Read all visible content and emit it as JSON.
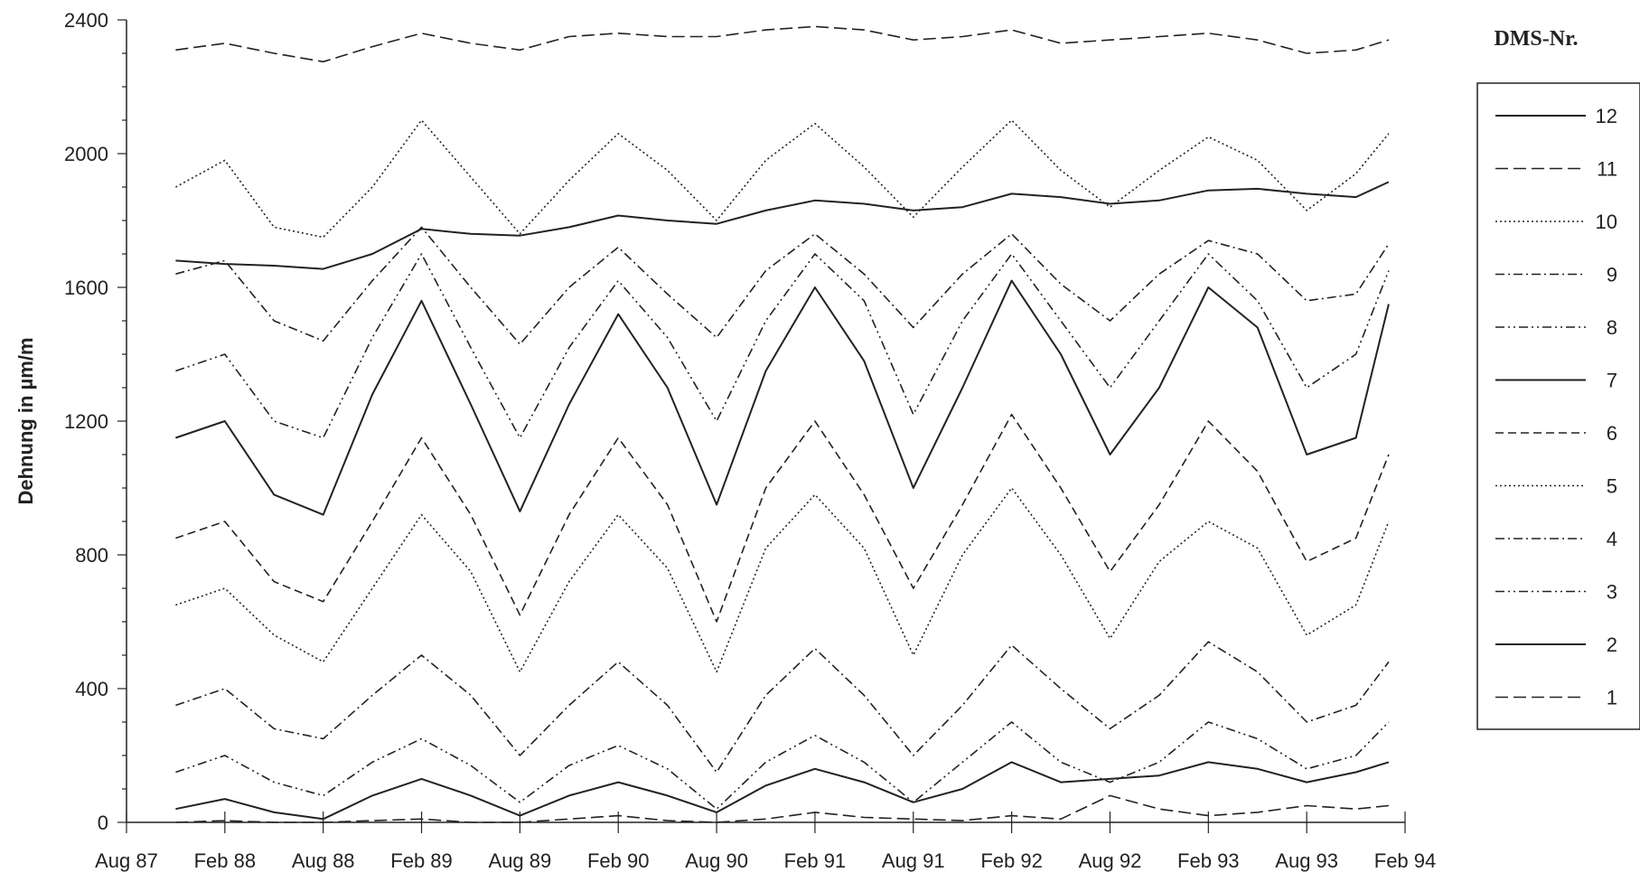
{
  "chart_data": {
    "type": "line",
    "ylabel": "Dehnung in µm/m",
    "xlabel": "",
    "ylim": [
      0,
      2400
    ],
    "yticks": [
      0,
      400,
      800,
      1200,
      1600,
      2000,
      2400
    ],
    "xticks": [
      "Aug 87",
      "Feb 88",
      "Aug 88",
      "Feb 89",
      "Aug 89",
      "Feb 90",
      "Aug 90",
      "Feb 91",
      "Aug 91",
      "Feb 92",
      "Aug 92",
      "Feb 93",
      "Aug 93",
      "Feb 94"
    ],
    "xlim": [
      "1987-08",
      "1994-02"
    ],
    "legend_title": "DMS-Nr.",
    "legend_position": "right",
    "grid": false,
    "x": [
      "1987-11",
      "1988-02",
      "1988-05",
      "1988-08",
      "1988-11",
      "1989-02",
      "1989-05",
      "1989-08",
      "1989-11",
      "1990-02",
      "1990-05",
      "1990-08",
      "1990-11",
      "1991-02",
      "1991-05",
      "1991-08",
      "1991-11",
      "1992-02",
      "1992-05",
      "1992-08",
      "1992-11",
      "1993-02",
      "1993-05",
      "1993-08",
      "1993-11",
      "1994-01"
    ],
    "series": [
      {
        "name": "12",
        "dash": "solid",
        "values": [
          1680,
          1670,
          1665,
          1655,
          1700,
          1775,
          1760,
          1755,
          1780,
          1815,
          1800,
          1790,
          1830,
          1860,
          1850,
          1830,
          1840,
          1880,
          1870,
          1850,
          1860,
          1890,
          1895,
          1880,
          1870,
          1915
        ]
      },
      {
        "name": "11",
        "dash": "long-dash",
        "values": [
          2310,
          2330,
          2300,
          2275,
          2320,
          2360,
          2330,
          2310,
          2350,
          2360,
          2350,
          2350,
          2370,
          2380,
          2370,
          2340,
          2350,
          2370,
          2330,
          2340,
          2350,
          2360,
          2340,
          2300,
          2310,
          2340
        ]
      },
      {
        "name": "10",
        "dash": "fine-dot",
        "values": [
          1900,
          1980,
          1780,
          1750,
          1900,
          2100,
          1930,
          1760,
          1920,
          2060,
          1950,
          1800,
          1980,
          2090,
          1960,
          1810,
          1960,
          2100,
          1950,
          1840,
          1950,
          2050,
          1980,
          1830,
          1940,
          2060
        ]
      },
      {
        "name": "9",
        "dash": "dash-dot",
        "values": [
          1640,
          1680,
          1500,
          1440,
          1620,
          1780,
          1600,
          1430,
          1600,
          1720,
          1580,
          1450,
          1650,
          1760,
          1640,
          1480,
          1640,
          1760,
          1610,
          1500,
          1640,
          1740,
          1700,
          1560,
          1580,
          1730
        ]
      },
      {
        "name": "8",
        "dash": "dash-dot-dot",
        "values": [
          1350,
          1400,
          1200,
          1150,
          1450,
          1700,
          1420,
          1150,
          1420,
          1620,
          1450,
          1200,
          1500,
          1700,
          1560,
          1220,
          1500,
          1700,
          1500,
          1300,
          1500,
          1700,
          1560,
          1300,
          1400,
          1650
        ]
      },
      {
        "name": "7",
        "dash": "solid",
        "values": [
          1150,
          1200,
          980,
          920,
          1280,
          1560,
          1250,
          930,
          1250,
          1520,
          1300,
          950,
          1350,
          1600,
          1380,
          1000,
          1300,
          1620,
          1400,
          1100,
          1300,
          1600,
          1480,
          1100,
          1150,
          1550
        ]
      },
      {
        "name": "6",
        "dash": "medium-dash",
        "values": [
          850,
          900,
          720,
          660,
          900,
          1150,
          920,
          620,
          920,
          1150,
          950,
          600,
          1000,
          1200,
          980,
          700,
          950,
          1220,
          1000,
          750,
          950,
          1200,
          1050,
          780,
          850,
          1100
        ]
      },
      {
        "name": "5",
        "dash": "fine-dot",
        "values": [
          650,
          700,
          560,
          480,
          700,
          920,
          750,
          450,
          720,
          920,
          760,
          450,
          820,
          980,
          820,
          500,
          800,
          1000,
          800,
          550,
          780,
          900,
          820,
          560,
          650,
          900
        ]
      },
      {
        "name": "4",
        "dash": "dash-dot",
        "values": [
          350,
          400,
          280,
          250,
          380,
          500,
          380,
          200,
          350,
          480,
          350,
          150,
          380,
          520,
          380,
          200,
          350,
          530,
          400,
          280,
          380,
          540,
          450,
          300,
          350,
          480
        ]
      },
      {
        "name": "3",
        "dash": "dash-dot-dot",
        "values": [
          150,
          200,
          120,
          80,
          180,
          250,
          170,
          60,
          170,
          230,
          160,
          40,
          180,
          260,
          180,
          60,
          180,
          300,
          180,
          120,
          180,
          300,
          250,
          160,
          200,
          300
        ]
      },
      {
        "name": "2",
        "dash": "solid",
        "values": [
          40,
          70,
          30,
          10,
          80,
          130,
          80,
          20,
          80,
          120,
          80,
          30,
          110,
          160,
          120,
          60,
          100,
          180,
          120,
          130,
          140,
          180,
          160,
          120,
          150,
          180
        ]
      },
      {
        "name": "1",
        "dash": "long-dash",
        "values": [
          0,
          5,
          0,
          0,
          5,
          10,
          0,
          0,
          10,
          20,
          5,
          0,
          10,
          30,
          15,
          10,
          5,
          20,
          10,
          80,
          40,
          20,
          30,
          50,
          40,
          50
        ]
      }
    ]
  }
}
